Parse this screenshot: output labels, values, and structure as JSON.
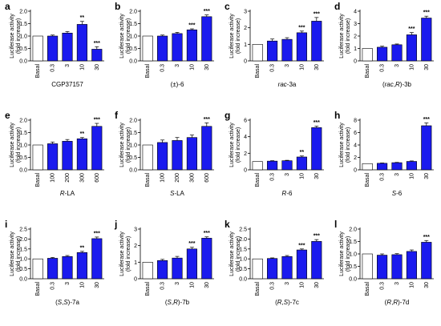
{
  "figure": {
    "ylabel_line1": "Luciferase activity",
    "ylabel_line2": "(fold increase)"
  },
  "chart_data": [
    {
      "letter": "a",
      "type": "bar",
      "categories": [
        "Basal",
        "0.3",
        "3",
        "10",
        "30"
      ],
      "values": [
        1.0,
        1.0,
        1.12,
        1.47,
        0.47
      ],
      "errors": [
        0,
        0.04,
        0.06,
        0.12,
        0.1
      ],
      "sig": [
        "",
        "",
        "",
        "**",
        "***"
      ],
      "ylim": [
        0,
        2.0
      ],
      "yticks": [
        "0.0",
        "0.5",
        "1.0",
        "1.5",
        "2.0"
      ],
      "ytick_values": [
        0,
        0.5,
        1.0,
        1.5,
        2.0
      ],
      "xlabel": "CGP37157",
      "xlabel_parts": [
        {
          "text": "CGP37157",
          "italic": false
        }
      ],
      "colors": {
        "basal": "#ffffff",
        "treated": "#1a1aee"
      }
    },
    {
      "letter": "b",
      "type": "bar",
      "categories": [
        "Basal",
        "0.3",
        "3",
        "10",
        "30"
      ],
      "values": [
        1.0,
        1.0,
        1.1,
        1.25,
        1.78
      ],
      "errors": [
        0,
        0.04,
        0.05,
        0.04,
        0.07
      ],
      "sig": [
        "",
        "",
        "",
        "***",
        "***"
      ],
      "ylim": [
        0,
        2.0
      ],
      "yticks": [
        "0.0",
        "0.5",
        "1.0",
        "1.5",
        "2.0"
      ],
      "ytick_values": [
        0,
        0.5,
        1.0,
        1.5,
        2.0
      ],
      "xlabel": "(±)-6",
      "xlabel_parts": [
        {
          "text": "(±)-6",
          "italic": false
        }
      ],
      "colors": {
        "basal": "#ffffff",
        "treated": "#1a1aee"
      }
    },
    {
      "letter": "c",
      "type": "bar",
      "categories": [
        "Basal",
        "0.3",
        "3",
        "10",
        "30"
      ],
      "values": [
        1.0,
        1.2,
        1.3,
        1.7,
        2.4
      ],
      "errors": [
        0,
        0.12,
        0.1,
        0.1,
        0.22
      ],
      "sig": [
        "",
        "",
        "",
        "***",
        "***"
      ],
      "ylim": [
        0,
        3
      ],
      "yticks": [
        "0",
        "1",
        "2",
        "3"
      ],
      "ytick_values": [
        0,
        1,
        2,
        3
      ],
      "xlabel": "rac-3a",
      "xlabel_parts": [
        {
          "text": "rac",
          "italic": true
        },
        {
          "text": "-3a",
          "italic": false
        }
      ],
      "colors": {
        "basal": "#ffffff",
        "treated": "#1a1aee"
      }
    },
    {
      "letter": "d",
      "type": "bar",
      "categories": [
        "Basal",
        "0.3",
        "3",
        "10",
        "30"
      ],
      "values": [
        1.0,
        1.1,
        1.3,
        2.1,
        3.45
      ],
      "errors": [
        0,
        0.08,
        0.06,
        0.18,
        0.15
      ],
      "sig": [
        "",
        "",
        "",
        "***",
        "***"
      ],
      "ylim": [
        0,
        4
      ],
      "yticks": [
        "0",
        "1",
        "2",
        "3",
        "4"
      ],
      "ytick_values": [
        0,
        1,
        2,
        3,
        4
      ],
      "xlabel": "(rac,R)-3b",
      "xlabel_parts": [
        {
          "text": "(",
          "italic": false
        },
        {
          "text": "rac",
          "italic": true
        },
        {
          "text": ",",
          "italic": false
        },
        {
          "text": "R",
          "italic": true
        },
        {
          "text": ")-3b",
          "italic": false
        }
      ],
      "colors": {
        "basal": "#ffffff",
        "treated": "#1a1aee"
      }
    },
    {
      "letter": "e",
      "type": "bar",
      "categories": [
        "Basal",
        "100",
        "200",
        "300",
        "600"
      ],
      "values": [
        1.0,
        1.05,
        1.15,
        1.25,
        1.75
      ],
      "errors": [
        0,
        0.07,
        0.07,
        0.05,
        0.12
      ],
      "sig": [
        "",
        "",
        "",
        "**",
        "***"
      ],
      "ylim": [
        0,
        2.0
      ],
      "yticks": [
        "0.0",
        "0.5",
        "1.0",
        "1.5",
        "2.0"
      ],
      "ytick_values": [
        0,
        0.5,
        1.0,
        1.5,
        2.0
      ],
      "xlabel": "R-LA",
      "xlabel_parts": [
        {
          "text": "R",
          "italic": true
        },
        {
          "text": "-LA",
          "italic": false
        }
      ],
      "colors": {
        "basal": "#ffffff",
        "treated": "#1a1aee"
      }
    },
    {
      "letter": "f",
      "type": "bar",
      "categories": [
        "Basal",
        "100",
        "200",
        "300",
        "600"
      ],
      "values": [
        1.0,
        1.1,
        1.18,
        1.3,
        1.75
      ],
      "errors": [
        0,
        0.1,
        0.12,
        0.1,
        0.14
      ],
      "sig": [
        "",
        "",
        "",
        "",
        "***"
      ],
      "ylim": [
        0,
        2.0
      ],
      "yticks": [
        "0.0",
        "0.5",
        "1.0",
        "1.5",
        "2.0"
      ],
      "ytick_values": [
        0,
        0.5,
        1.0,
        1.5,
        2.0
      ],
      "xlabel": "S-LA",
      "xlabel_parts": [
        {
          "text": "S",
          "italic": true
        },
        {
          "text": "-LA",
          "italic": false
        }
      ],
      "colors": {
        "basal": "#ffffff",
        "treated": "#1a1aee"
      }
    },
    {
      "letter": "g",
      "type": "bar",
      "categories": [
        "Basal",
        "0.3",
        "3",
        "10",
        "30"
      ],
      "values": [
        1.0,
        1.05,
        1.1,
        1.55,
        5.1
      ],
      "errors": [
        0,
        0.05,
        0.05,
        0.12,
        0.18
      ],
      "sig": [
        "",
        "",
        "",
        "**",
        "***"
      ],
      "ylim": [
        0,
        6
      ],
      "yticks": [
        "0",
        "2",
        "4",
        "6"
      ],
      "ytick_values": [
        0,
        2,
        4,
        6
      ],
      "xlabel": "R-6",
      "xlabel_parts": [
        {
          "text": "R",
          "italic": true
        },
        {
          "text": "-6",
          "italic": false
        }
      ],
      "colors": {
        "basal": "#ffffff",
        "treated": "#1a1aee"
      }
    },
    {
      "letter": "h",
      "type": "bar",
      "categories": [
        "Basal",
        "0.3",
        "3",
        "10",
        "30"
      ],
      "values": [
        1.0,
        1.05,
        1.15,
        1.35,
        7.1
      ],
      "errors": [
        0,
        0.05,
        0.05,
        0.08,
        0.45
      ],
      "sig": [
        "",
        "",
        "",
        "",
        "***"
      ],
      "ylim": [
        0,
        8
      ],
      "yticks": [
        "0",
        "2",
        "4",
        "6",
        "8"
      ],
      "ytick_values": [
        0,
        2,
        4,
        6,
        8
      ],
      "xlabel": "S-6",
      "xlabel_parts": [
        {
          "text": "S",
          "italic": true
        },
        {
          "text": "-6",
          "italic": false
        }
      ],
      "colors": {
        "basal": "#ffffff",
        "treated": "#1a1aee"
      }
    },
    {
      "letter": "i",
      "type": "bar",
      "categories": [
        "Basal",
        "0.3",
        "3",
        "10",
        "30"
      ],
      "values": [
        1.0,
        1.03,
        1.12,
        1.32,
        2.02
      ],
      "errors": [
        0,
        0.04,
        0.05,
        0.06,
        0.08
      ],
      "sig": [
        "",
        "",
        "",
        "**",
        "***"
      ],
      "ylim": [
        0,
        2.5
      ],
      "yticks": [
        "0.0",
        "0.5",
        "1.0",
        "1.5",
        "2.0",
        "2.5"
      ],
      "ytick_values": [
        0,
        0.5,
        1.0,
        1.5,
        2.0,
        2.5
      ],
      "xlabel": "(S,S)-7a",
      "xlabel_parts": [
        {
          "text": "(",
          "italic": false
        },
        {
          "text": "S",
          "italic": true
        },
        {
          "text": ",",
          "italic": false
        },
        {
          "text": "S",
          "italic": true
        },
        {
          "text": ")-7a",
          "italic": false
        }
      ],
      "colors": {
        "basal": "#ffffff",
        "treated": "#1a1aee"
      }
    },
    {
      "letter": "j",
      "type": "bar",
      "categories": [
        "Basal",
        "0.3",
        "3",
        "10",
        "30"
      ],
      "values": [
        1.0,
        1.1,
        1.25,
        1.8,
        2.45
      ],
      "errors": [
        0,
        0.07,
        0.1,
        0.1,
        0.08
      ],
      "sig": [
        "",
        "",
        "",
        "***",
        "***"
      ],
      "ylim": [
        0,
        3
      ],
      "yticks": [
        "0",
        "1",
        "2",
        "3"
      ],
      "ytick_values": [
        0,
        1,
        2,
        3
      ],
      "xlabel": "(S,R)-7b",
      "xlabel_parts": [
        {
          "text": "(",
          "italic": false
        },
        {
          "text": "S",
          "italic": true
        },
        {
          "text": ",",
          "italic": false
        },
        {
          "text": "R",
          "italic": true
        },
        {
          "text": ")-7b",
          "italic": false
        }
      ],
      "colors": {
        "basal": "#ffffff",
        "treated": "#1a1aee"
      }
    },
    {
      "letter": "k",
      "type": "bar",
      "categories": [
        "Basal",
        "0.3",
        "3",
        "10",
        "30"
      ],
      "values": [
        1.0,
        1.02,
        1.12,
        1.45,
        1.88
      ],
      "errors": [
        0,
        0.03,
        0.05,
        0.05,
        0.09
      ],
      "sig": [
        "",
        "",
        "",
        "***",
        "***"
      ],
      "ylim": [
        0,
        2.5
      ],
      "yticks": [
        "0.0",
        "0.5",
        "1.0",
        "1.5",
        "2.0",
        "2.5"
      ],
      "ytick_values": [
        0,
        0.5,
        1.0,
        1.5,
        2.0,
        2.5
      ],
      "xlabel": "(R,S)-7c",
      "xlabel_parts": [
        {
          "text": "(",
          "italic": false
        },
        {
          "text": "R",
          "italic": true
        },
        {
          "text": ",",
          "italic": false
        },
        {
          "text": "S",
          "italic": true
        },
        {
          "text": ")-7c",
          "italic": false
        }
      ],
      "colors": {
        "basal": "#ffffff",
        "treated": "#1a1aee"
      }
    },
    {
      "letter": "l",
      "type": "bar",
      "categories": [
        "Basal",
        "0.3",
        "3",
        "10",
        "30"
      ],
      "values": [
        1.0,
        0.95,
        0.97,
        1.1,
        1.47
      ],
      "errors": [
        0,
        0.05,
        0.04,
        0.06,
        0.07
      ],
      "sig": [
        "",
        "",
        "",
        "",
        "***"
      ],
      "ylim": [
        0,
        2.0
      ],
      "yticks": [
        "0.0",
        "0.5",
        "1.0",
        "1.5",
        "2.0"
      ],
      "ytick_values": [
        0,
        0.5,
        1.0,
        1.5,
        2.0
      ],
      "xlabel": "(R,R)-7d",
      "xlabel_parts": [
        {
          "text": "(",
          "italic": false
        },
        {
          "text": "R",
          "italic": true
        },
        {
          "text": ",",
          "italic": false
        },
        {
          "text": "R",
          "italic": true
        },
        {
          "text": ")-7d",
          "italic": false
        }
      ],
      "colors": {
        "basal": "#ffffff",
        "treated": "#1a1aee"
      }
    }
  ]
}
